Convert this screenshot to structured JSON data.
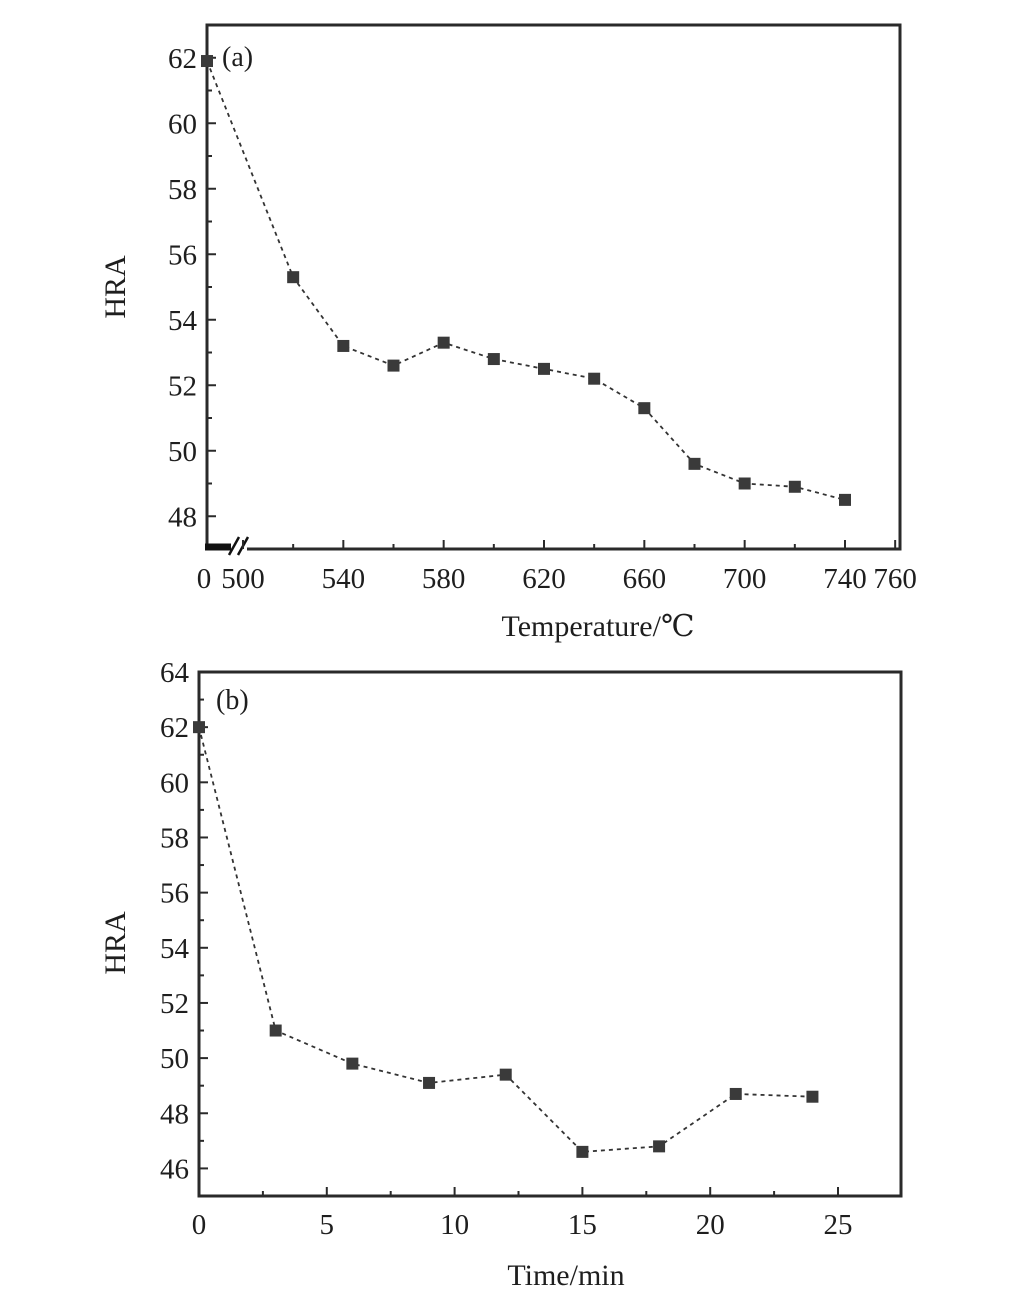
{
  "chart_data": [
    {
      "type": "line",
      "panel_label": "(a)",
      "xlabel": "Temperature/℃",
      "ylabel": "HRA",
      "axis_break": true,
      "xticks_before_break": [
        0
      ],
      "xticks": [
        500,
        540,
        580,
        620,
        660,
        700,
        740,
        760
      ],
      "xlim": [
        500,
        760
      ],
      "yticks": [
        48,
        50,
        52,
        54,
        56,
        58,
        60,
        62
      ],
      "ylim": [
        47,
        63
      ],
      "grid": false,
      "marker": "square",
      "line_style": "dashed",
      "x": [
        0,
        520,
        540,
        560,
        580,
        600,
        620,
        640,
        660,
        680,
        700,
        720,
        740
      ],
      "y": [
        61.9,
        55.3,
        53.2,
        52.6,
        53.3,
        52.8,
        52.5,
        52.2,
        51.3,
        49.6,
        49.0,
        48.9,
        48.5
      ]
    },
    {
      "type": "line",
      "panel_label": "(b)",
      "xlabel": "Time/min",
      "ylabel": "HRA",
      "xticks": [
        0,
        5,
        10,
        15,
        20,
        25
      ],
      "xlim": [
        0,
        27.5
      ],
      "yticks": [
        46,
        48,
        50,
        52,
        54,
        56,
        58,
        60,
        62,
        64
      ],
      "ylim": [
        45,
        64
      ],
      "grid": false,
      "marker": "square",
      "line_style": "dashed",
      "x": [
        0,
        3,
        6,
        9,
        12,
        15,
        18,
        21,
        24
      ],
      "y": [
        62.0,
        51.0,
        49.8,
        49.1,
        49.4,
        46.6,
        46.8,
        48.7,
        48.6
      ]
    }
  ]
}
